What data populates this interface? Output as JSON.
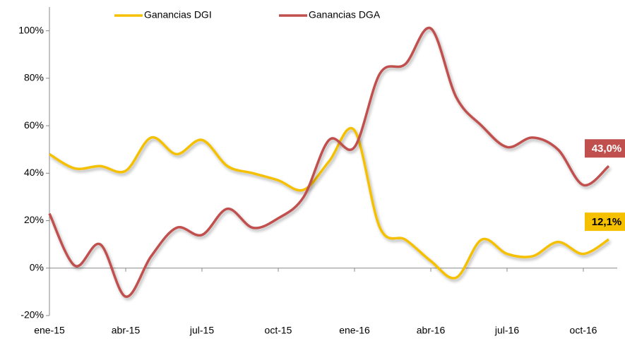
{
  "chart_data": {
    "type": "line",
    "categories": [
      "ene-15",
      null,
      null,
      "abr-15",
      null,
      null,
      "jul-15",
      null,
      null,
      "oct-15",
      null,
      null,
      "ene-16",
      null,
      null,
      "abr-16",
      null,
      null,
      "jul-16",
      null,
      null,
      "oct-16",
      null
    ],
    "series": [
      {
        "name": "Ganancias DGI",
        "color": "#f5c000",
        "label_text_color": "#000000",
        "values": [
          48,
          42,
          43,
          41,
          55,
          48,
          54,
          43,
          40,
          37,
          33,
          45,
          58,
          17,
          12,
          3,
          -4,
          12,
          6,
          5,
          11,
          6,
          12.1
        ],
        "value_labels": [
          null,
          null,
          null,
          null,
          null,
          null,
          null,
          null,
          null,
          null,
          null,
          null,
          null,
          null,
          null,
          null,
          null,
          null,
          null,
          null,
          null,
          null,
          "12,1%"
        ]
      },
      {
        "name": "Ganancias DGA",
        "color": "#c0504d",
        "label_text_color": "#ffffff",
        "values": [
          23,
          1,
          10,
          -12,
          5,
          17,
          14,
          25,
          17,
          21,
          30,
          54,
          51,
          82,
          86,
          101,
          72,
          60,
          51,
          55,
          50,
          35,
          43.0
        ],
        "value_labels": [
          null,
          null,
          null,
          null,
          null,
          null,
          null,
          null,
          null,
          null,
          null,
          null,
          null,
          null,
          null,
          null,
          null,
          null,
          null,
          null,
          null,
          null,
          "43,0%"
        ]
      }
    ],
    "ylim": [
      -20,
      110
    ],
    "yticks": [
      {
        "value": -20,
        "label": "-20%"
      },
      {
        "value": 0,
        "label": "0%"
      },
      {
        "value": 20,
        "label": "20%"
      },
      {
        "value": 40,
        "label": "40%"
      },
      {
        "value": 60,
        "label": "60%"
      },
      {
        "value": 80,
        "label": "80%"
      },
      {
        "value": 100,
        "label": "100%"
      }
    ],
    "legend": "top",
    "grid": false
  }
}
